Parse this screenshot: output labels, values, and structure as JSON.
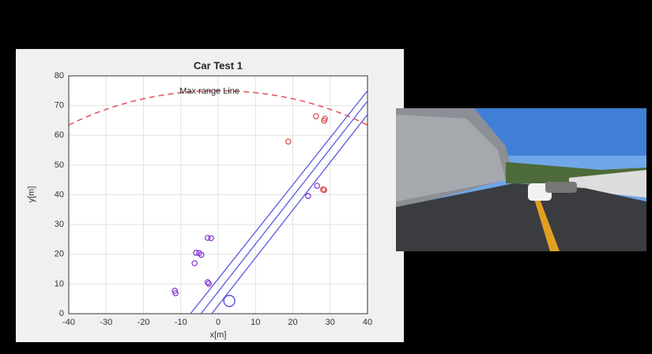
{
  "chart_data": {
    "type": "scatter",
    "title": "Car Test 1",
    "x_label": "x[m]",
    "y_label": "y[m]",
    "xlim": [
      -40,
      40
    ],
    "xticks": [
      -40,
      -30,
      -20,
      -10,
      0,
      10,
      20,
      30,
      40
    ],
    "ylim": [
      0,
      80
    ],
    "yticks": [
      0,
      10,
      20,
      30,
      40,
      50,
      60,
      70,
      80
    ],
    "grid": true,
    "series": [
      {
        "color": "#d9534f",
        "marker_size": 3.2,
        "x": [
          18.8,
          26.2,
          28.6,
          28.4,
          28.1,
          28.4
        ],
        "y": [
          57.9,
          66.4,
          65.6,
          64.9,
          41.8,
          41.6
        ]
      },
      {
        "color": "#8a3fd1",
        "marker_size": 3.2,
        "x": [
          24.1,
          26.5,
          -2.8,
          -1.9,
          -5.9,
          -5.1,
          -4.5,
          -6.3,
          -2.8,
          -2.5,
          -11.6,
          -11.4
        ],
        "y": [
          39.6,
          43,
          25.5,
          25.4,
          20.5,
          20.4,
          19.8,
          17,
          10.6,
          10.1,
          7.7,
          6.9
        ]
      },
      {
        "color": "#4b4bd6",
        "marker_size": 7,
        "x": [
          3
        ],
        "y": [
          4.3
        ]
      }
    ],
    "lines": [
      {
        "color": "#5a5ae0",
        "x": [
          -7.4,
          40
        ],
        "y": [
          0,
          75
        ]
      },
      {
        "color": "#5a5ae0",
        "x": [
          -4.6,
          40
        ],
        "y": [
          0,
          71.5
        ]
      },
      {
        "color": "#5a5ae0",
        "x": [
          -1.7,
          40
        ],
        "y": [
          0,
          67
        ]
      }
    ],
    "range_arc": {
      "radius": 75,
      "color": "#e0505a",
      "label": "Max range Line",
      "label_x": -2.3
    }
  }
}
